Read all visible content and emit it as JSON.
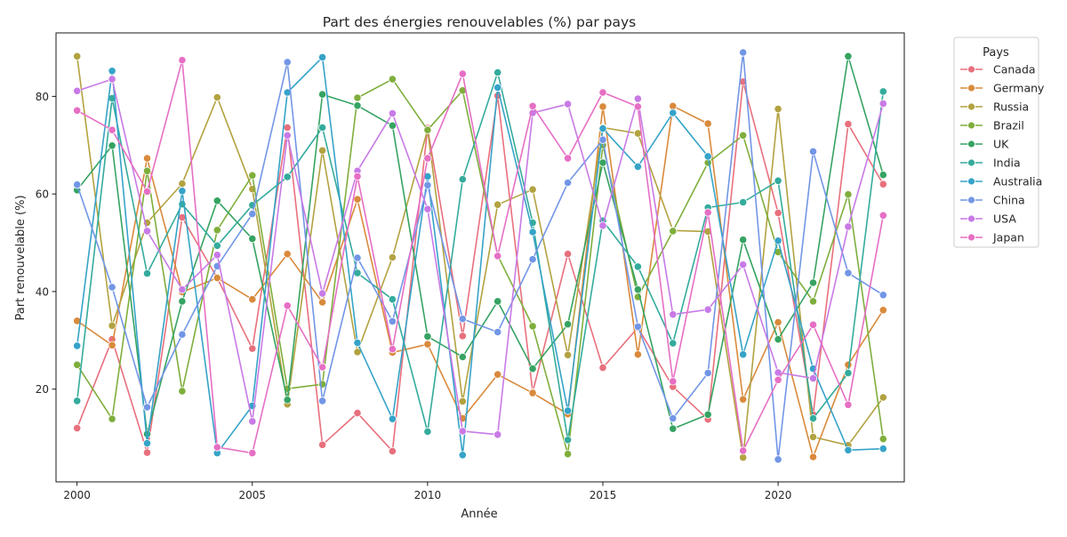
{
  "chart_data": {
    "type": "line",
    "title": "Part des énergies renouvelables (%) par pays",
    "xlabel": "Année",
    "ylabel": "Part renouvelable (%)",
    "legend_title": "Pays",
    "legend_position": "outside-right-top",
    "grid": false,
    "xlim": [
      1999.4,
      2023.6
    ],
    "ylim": [
      1.0,
      93.0
    ],
    "x_ticks": [
      2000,
      2005,
      2010,
      2015,
      2020
    ],
    "y_ticks": [
      20,
      40,
      60,
      80
    ],
    "x": [
      2000,
      2001,
      2002,
      2003,
      2004,
      2005,
      2006,
      2007,
      2008,
      2009,
      2010,
      2011,
      2012,
      2013,
      2014,
      2015,
      2016,
      2017,
      2018,
      2019,
      2020,
      2021,
      2022,
      2023
    ],
    "series": [
      {
        "name": "Canada",
        "color": "#e8707d",
        "values": [
          12.0,
          30.2,
          7.0,
          55.2,
          42.8,
          28.3,
          73.6,
          8.6,
          15.1,
          7.3,
          73.5,
          30.9,
          80.1,
          19.4,
          47.7,
          24.4,
          32.6,
          20.5,
          13.8,
          83.0,
          56.1,
          14.8,
          74.3,
          62.0
        ]
      },
      {
        "name": "Germany",
        "color": "#d98a3c",
        "values": [
          34.0,
          29.0,
          67.3,
          39.9,
          42.8,
          38.4,
          47.7,
          37.8,
          58.9,
          27.5,
          29.2,
          14.0,
          23.0,
          19.2,
          14.9,
          77.9,
          27.1,
          78.0,
          74.4,
          17.9,
          33.7,
          6.1,
          25.0,
          36.2
        ]
      },
      {
        "name": "Russia",
        "color": "#b2a240",
        "values": [
          88.2,
          33.0,
          54.1,
          62.1,
          79.8,
          61.0,
          16.9,
          68.9,
          27.6,
          47.0,
          73.2,
          17.5,
          57.8,
          60.9,
          27.0,
          73.6,
          72.4,
          52.5,
          52.3,
          6.0,
          77.4,
          10.2,
          8.5,
          18.3
        ]
      },
      {
        "name": "Brazil",
        "color": "#7fae3c",
        "values": [
          25.0,
          13.9,
          64.7,
          19.6,
          52.6,
          63.8,
          20.1,
          21.0,
          79.7,
          83.5,
          73.1,
          81.2,
          47.4,
          32.9,
          6.7,
          70.0,
          38.9,
          52.4,
          66.4,
          72.0,
          48.1,
          38.0,
          59.9,
          9.8
        ]
      },
      {
        "name": "UK",
        "color": "#36a362",
        "values": [
          60.8,
          69.9,
          10.8,
          38.0,
          58.6,
          50.8,
          17.8,
          80.4,
          78.1,
          74.0,
          30.8,
          26.6,
          38.0,
          24.2,
          33.3,
          66.4,
          40.4,
          11.9,
          14.8,
          50.6,
          30.2,
          41.8,
          88.2,
          63.9
        ]
      },
      {
        "name": "India",
        "color": "#34ab9c",
        "values": [
          17.6,
          79.6,
          43.7,
          57.9,
          49.4,
          57.7,
          63.5,
          73.6,
          43.8,
          38.4,
          11.3,
          63.0,
          84.9,
          54.1,
          9.6,
          54.5,
          45.1,
          29.4,
          57.2,
          58.3,
          62.7,
          14.0,
          23.3,
          81.0
        ]
      },
      {
        "name": "Australia",
        "color": "#36a3c8",
        "values": [
          28.9,
          85.2,
          8.9,
          60.6,
          6.9,
          16.6,
          80.8,
          88.0,
          29.5,
          13.9,
          63.6,
          6.5,
          81.8,
          52.2,
          15.6,
          73.4,
          65.6,
          76.6,
          67.7,
          27.1,
          50.4,
          24.2,
          7.5,
          7.8
        ]
      },
      {
        "name": "China",
        "color": "#7296e6",
        "values": [
          61.9,
          40.9,
          16.3,
          31.2,
          45.2,
          55.9,
          87.0,
          17.6,
          46.9,
          33.9,
          61.8,
          34.4,
          31.7,
          46.6,
          62.3,
          71.1,
          32.8,
          14.0,
          23.3,
          89.0,
          5.6,
          68.7,
          43.8,
          39.3
        ]
      },
      {
        "name": "USA",
        "color": "#c87ae6",
        "values": [
          81.1,
          83.5,
          52.4,
          40.4,
          47.5,
          13.4,
          72.0,
          39.6,
          64.7,
          76.5,
          56.9,
          11.4,
          10.7,
          76.6,
          78.4,
          53.5,
          79.5,
          35.3,
          36.3,
          45.5,
          23.4,
          22.2,
          53.3,
          78.5
        ]
      },
      {
        "name": "Japan",
        "color": "#e66fc4",
        "values": [
          77.1,
          73.1,
          60.5,
          87.4,
          8.1,
          6.9,
          37.1,
          24.5,
          63.6,
          28.2,
          67.3,
          84.6,
          47.3,
          78.0,
          67.3,
          80.8,
          77.9,
          21.6,
          56.2,
          7.4,
          21.9,
          33.2,
          16.8,
          55.6
        ]
      }
    ]
  }
}
